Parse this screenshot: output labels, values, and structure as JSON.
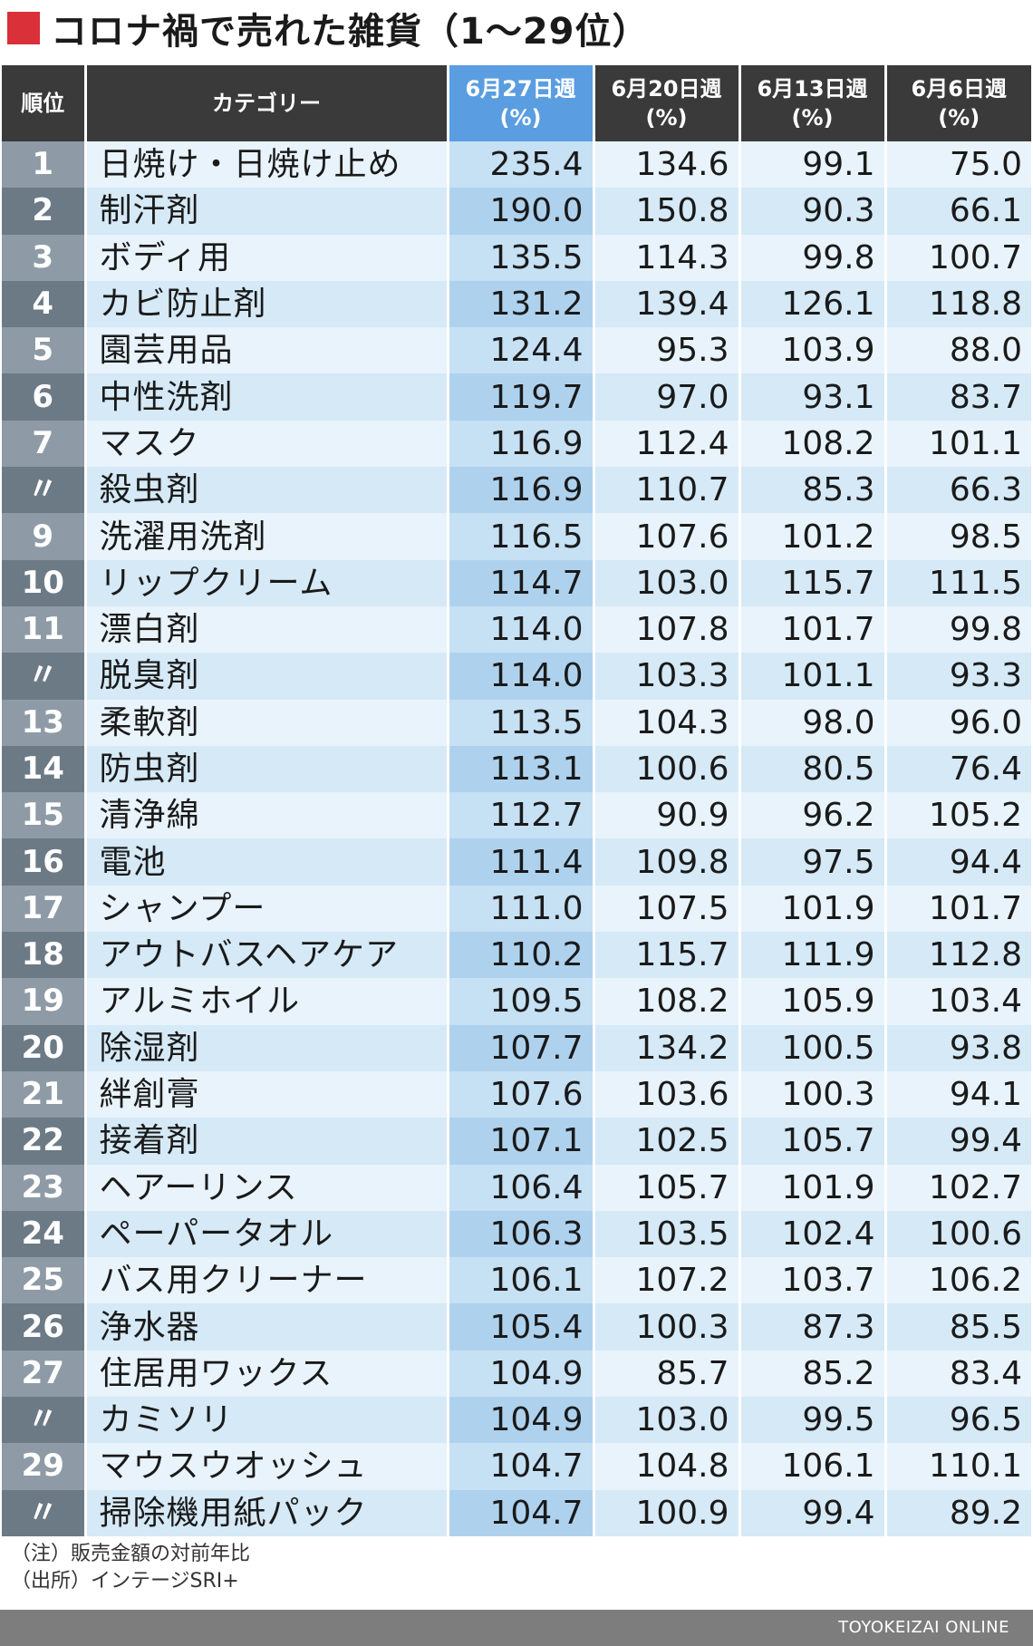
{
  "title": "コロナ禍で売れた雑貨（1～29位）",
  "colors": {
    "title_marker": "#d9303a",
    "header_bg": "#3a3a3a",
    "header_highlight": "#5a9de0",
    "rank_cell": "#6c7a86",
    "row_light": "#e8f3fb",
    "row_dark": "#d5e9f6",
    "footer_bg": "#7d7d7d"
  },
  "table": {
    "headers": {
      "rank": "順位",
      "category": "カテゴリー",
      "weeks": [
        {
          "week": "6月27日週",
          "unit": "(%)"
        },
        {
          "week": "6月20日週",
          "unit": "(%)"
        },
        {
          "week": "6月13日週",
          "unit": "(%)"
        },
        {
          "week": "6月6日週",
          "unit": "(%)"
        }
      ]
    },
    "rows": [
      {
        "rank": "1",
        "category": "日焼け・日焼け止め",
        "values": [
          "235.4",
          "134.6",
          "99.1",
          "75.0"
        ]
      },
      {
        "rank": "2",
        "category": "制汗剤",
        "values": [
          "190.0",
          "150.8",
          "90.3",
          "66.1"
        ]
      },
      {
        "rank": "3",
        "category": "ボディ用",
        "values": [
          "135.5",
          "114.3",
          "99.8",
          "100.7"
        ]
      },
      {
        "rank": "4",
        "category": "カビ防止剤",
        "values": [
          "131.2",
          "139.4",
          "126.1",
          "118.8"
        ]
      },
      {
        "rank": "5",
        "category": "園芸用品",
        "values": [
          "124.4",
          "95.3",
          "103.9",
          "88.0"
        ]
      },
      {
        "rank": "6",
        "category": "中性洗剤",
        "values": [
          "119.7",
          "97.0",
          "93.1",
          "83.7"
        ]
      },
      {
        "rank": "7",
        "category": "マスク",
        "values": [
          "116.9",
          "112.4",
          "108.2",
          "101.1"
        ]
      },
      {
        "rank": "〃",
        "category": "殺虫剤",
        "values": [
          "116.9",
          "110.7",
          "85.3",
          "66.3"
        ]
      },
      {
        "rank": "9",
        "category": "洗濯用洗剤",
        "values": [
          "116.5",
          "107.6",
          "101.2",
          "98.5"
        ]
      },
      {
        "rank": "10",
        "category": "リップクリーム",
        "values": [
          "114.7",
          "103.0",
          "115.7",
          "111.5"
        ]
      },
      {
        "rank": "11",
        "category": "漂白剤",
        "values": [
          "114.0",
          "107.8",
          "101.7",
          "99.8"
        ]
      },
      {
        "rank": "〃",
        "category": "脱臭剤",
        "values": [
          "114.0",
          "103.3",
          "101.1",
          "93.3"
        ]
      },
      {
        "rank": "13",
        "category": "柔軟剤",
        "values": [
          "113.5",
          "104.3",
          "98.0",
          "96.0"
        ]
      },
      {
        "rank": "14",
        "category": "防虫剤",
        "values": [
          "113.1",
          "100.6",
          "80.5",
          "76.4"
        ]
      },
      {
        "rank": "15",
        "category": "清浄綿",
        "values": [
          "112.7",
          "90.9",
          "96.2",
          "105.2"
        ]
      },
      {
        "rank": "16",
        "category": "電池",
        "values": [
          "111.4",
          "109.8",
          "97.5",
          "94.4"
        ]
      },
      {
        "rank": "17",
        "category": "シャンプー",
        "values": [
          "111.0",
          "107.5",
          "101.9",
          "101.7"
        ]
      },
      {
        "rank": "18",
        "category": "アウトバスヘアケア",
        "values": [
          "110.2",
          "115.7",
          "111.9",
          "112.8"
        ]
      },
      {
        "rank": "19",
        "category": "アルミホイル",
        "values": [
          "109.5",
          "108.2",
          "105.9",
          "103.4"
        ]
      },
      {
        "rank": "20",
        "category": "除湿剤",
        "values": [
          "107.7",
          "134.2",
          "100.5",
          "93.8"
        ]
      },
      {
        "rank": "21",
        "category": "絆創膏",
        "values": [
          "107.6",
          "103.6",
          "100.3",
          "94.1"
        ]
      },
      {
        "rank": "22",
        "category": "接着剤",
        "values": [
          "107.1",
          "102.5",
          "105.7",
          "99.4"
        ]
      },
      {
        "rank": "23",
        "category": "ヘアーリンス",
        "values": [
          "106.4",
          "105.7",
          "101.9",
          "102.7"
        ]
      },
      {
        "rank": "24",
        "category": "ペーパータオル",
        "values": [
          "106.3",
          "103.5",
          "102.4",
          "100.6"
        ]
      },
      {
        "rank": "25",
        "category": "バス用クリーナー",
        "values": [
          "106.1",
          "107.2",
          "103.7",
          "106.2"
        ]
      },
      {
        "rank": "26",
        "category": "浄水器",
        "values": [
          "105.4",
          "100.3",
          "87.3",
          "85.5"
        ]
      },
      {
        "rank": "27",
        "category": "住居用ワックス",
        "values": [
          "104.9",
          "85.7",
          "85.2",
          "83.4"
        ]
      },
      {
        "rank": "〃",
        "category": "カミソリ",
        "values": [
          "104.9",
          "103.0",
          "99.5",
          "96.5"
        ]
      },
      {
        "rank": "29",
        "category": "マウスウオッシュ",
        "values": [
          "104.7",
          "104.8",
          "106.1",
          "110.1"
        ]
      },
      {
        "rank": "〃",
        "category": "掃除機用紙パック",
        "values": [
          "104.7",
          "100.9",
          "99.4",
          "89.2"
        ]
      }
    ]
  },
  "notes": {
    "note": "（注）販売金額の対前年比",
    "source": "（出所）インテージSRI+"
  },
  "footer": "TOYOKEIZAI ONLINE"
}
